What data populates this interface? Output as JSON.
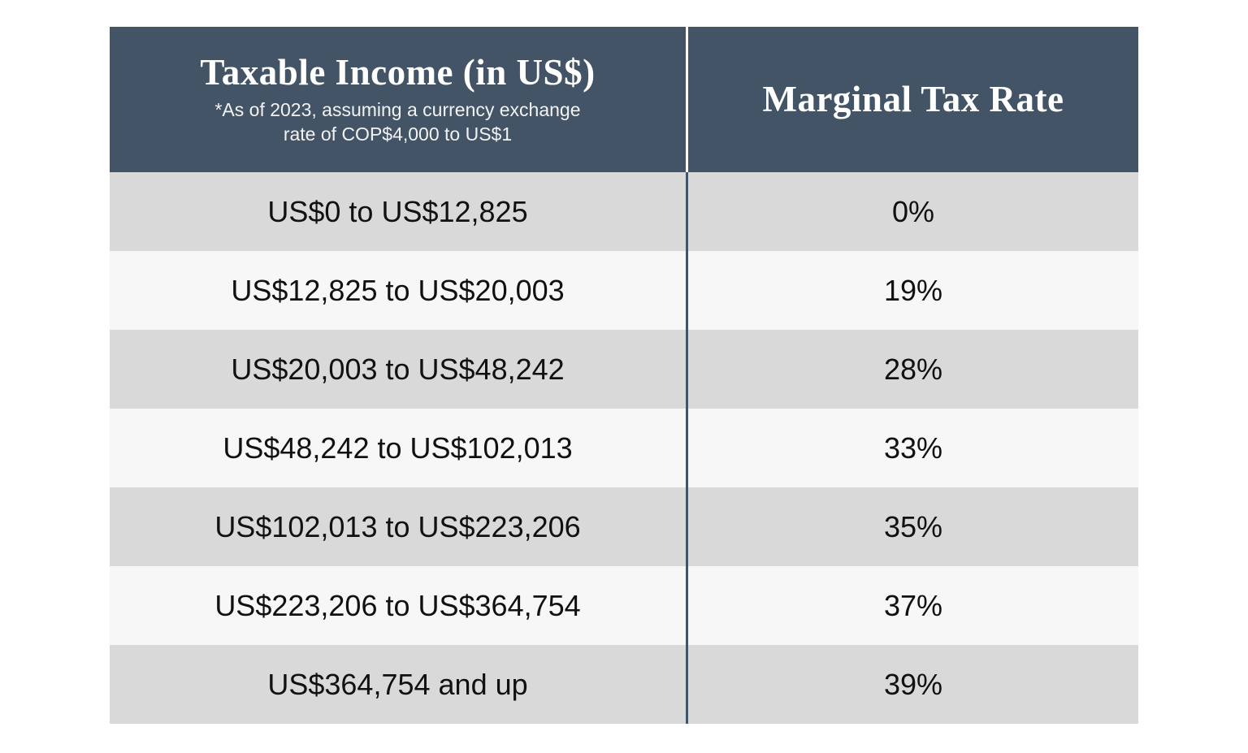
{
  "table": {
    "header": {
      "income_title": "Taxable Income (in US$)",
      "income_note_line1": "*As of 2023, assuming a currency exchange",
      "income_note_line2": "rate of COP$4,000 to US$1",
      "rate_title": "Marginal Tax Rate"
    },
    "rows": [
      {
        "income": "US$0 to US$12,825",
        "rate": "0%"
      },
      {
        "income": "US$12,825 to US$20,003",
        "rate": "19%"
      },
      {
        "income": "US$20,003 to US$48,242",
        "rate": "28%"
      },
      {
        "income": "US$48,242 to US$102,013",
        "rate": "33%"
      },
      {
        "income": "US$102,013 to US$223,206",
        "rate": "35%"
      },
      {
        "income": "US$223,206 to US$364,754",
        "rate": "37%"
      },
      {
        "income": "US$364,754 and up",
        "rate": "39%"
      }
    ]
  },
  "colors": {
    "header_bg": "#435466",
    "row_dark": "#d9d9d9",
    "row_light": "#f7f7f7"
  }
}
